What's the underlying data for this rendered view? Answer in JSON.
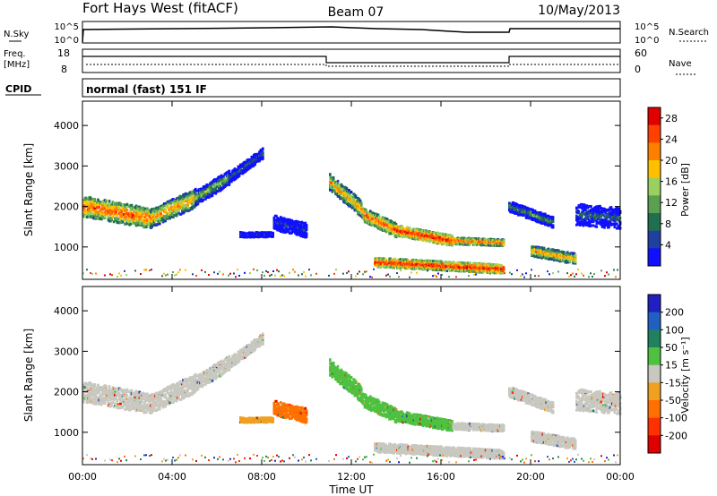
{
  "header": {
    "station": "Fort Hays West (fitACF)",
    "beam": "Beam 07",
    "date": "10/May/2013"
  },
  "summary_panels": {
    "nsky_label": "N.Sky",
    "nsky_ticks": [
      "10^5",
      "10^0"
    ],
    "nsearch_label": "N.Search",
    "nsearch_ticks": [
      "10^5",
      "10^0"
    ],
    "freq_label": "Freq.",
    "freq_unit": "[MHz]",
    "freq_ticks": [
      18,
      8
    ],
    "nave_label": "Nave",
    "nave_ticks": [
      60,
      0
    ],
    "cpid_label": "CPID",
    "cpid_text": "normal (fast) 151 IF"
  },
  "colors": {
    "power_scale": [
      "#1010ff",
      "#2040a0",
      "#207050",
      "#5aa050",
      "#99d060",
      "#ffc000",
      "#ff8000",
      "#ff4000",
      "#e00000"
    ],
    "velocity_scale": [
      "#2020c0",
      "#2060c0",
      "#208060",
      "#50c040",
      "#c8c8c0",
      "#f0a020",
      "#ff7000",
      "#ff3000",
      "#e00000"
    ]
  },
  "chart_data": [
    {
      "type": "heatmap",
      "name": "power-panel",
      "ylabel": "Slant Range [km]",
      "yticks": [
        1000,
        2000,
        3000,
        4000
      ],
      "ylim": [
        200,
        4600
      ],
      "xlim": [
        0,
        24
      ],
      "colorbar_label": "Power [dB]",
      "colorbar_ticks": [
        4,
        8,
        12,
        16,
        20,
        24,
        28
      ],
      "colorbar_range": [
        0,
        30
      ]
    },
    {
      "type": "heatmap",
      "name": "velocity-panel",
      "ylabel": "Slant Range [km]",
      "yticks": [
        1000,
        2000,
        3000,
        4000
      ],
      "ylim": [
        200,
        4600
      ],
      "xlim": [
        0,
        24
      ],
      "xticks": [
        "00:00",
        "04:00",
        "08:00",
        "12:00",
        "16:00",
        "20:00",
        "00:00"
      ],
      "xlabel": "Time UT",
      "colorbar_label": "Velocity [m s⁻¹]",
      "colorbar_ticks": [
        200,
        100,
        50,
        15,
        -15,
        -50,
        -100,
        -200
      ]
    }
  ]
}
